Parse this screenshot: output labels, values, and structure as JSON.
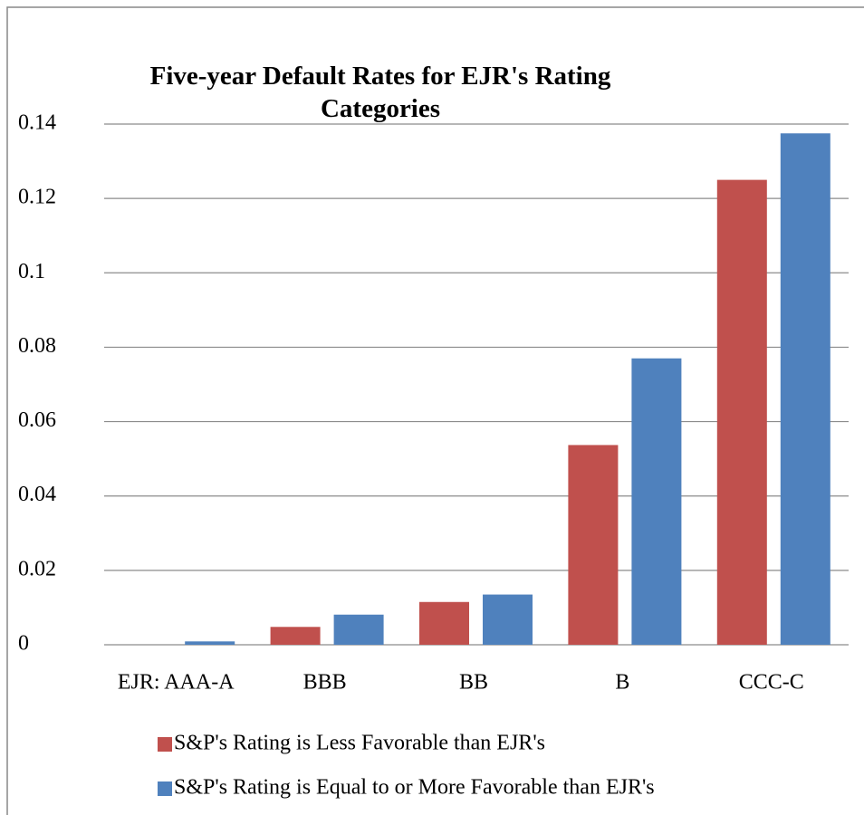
{
  "chart_data": {
    "type": "bar",
    "title": "Five-year Default Rates for EJR's Rating Categories",
    "categories": [
      "EJR: AAA-A",
      "BBB",
      "BB",
      "B",
      "CCC-C"
    ],
    "series": [
      {
        "name": "S&P's Rating is Less Favorable than EJR's",
        "color": "#c0504d",
        "values": [
          0,
          0.0048,
          0.0115,
          0.0537,
          0.125
        ]
      },
      {
        "name": "S&P's Rating is Equal to or More Favorable than EJR's",
        "color": "#4f81bd",
        "values": [
          0.0009,
          0.0081,
          0.0135,
          0.077,
          0.1375
        ]
      }
    ],
    "ylim": [
      0,
      0.14
    ],
    "yticks": [
      0,
      0.02,
      0.04,
      0.06,
      0.08,
      0.1,
      0.12,
      0.14
    ],
    "grid": true,
    "legend": "bottom"
  }
}
